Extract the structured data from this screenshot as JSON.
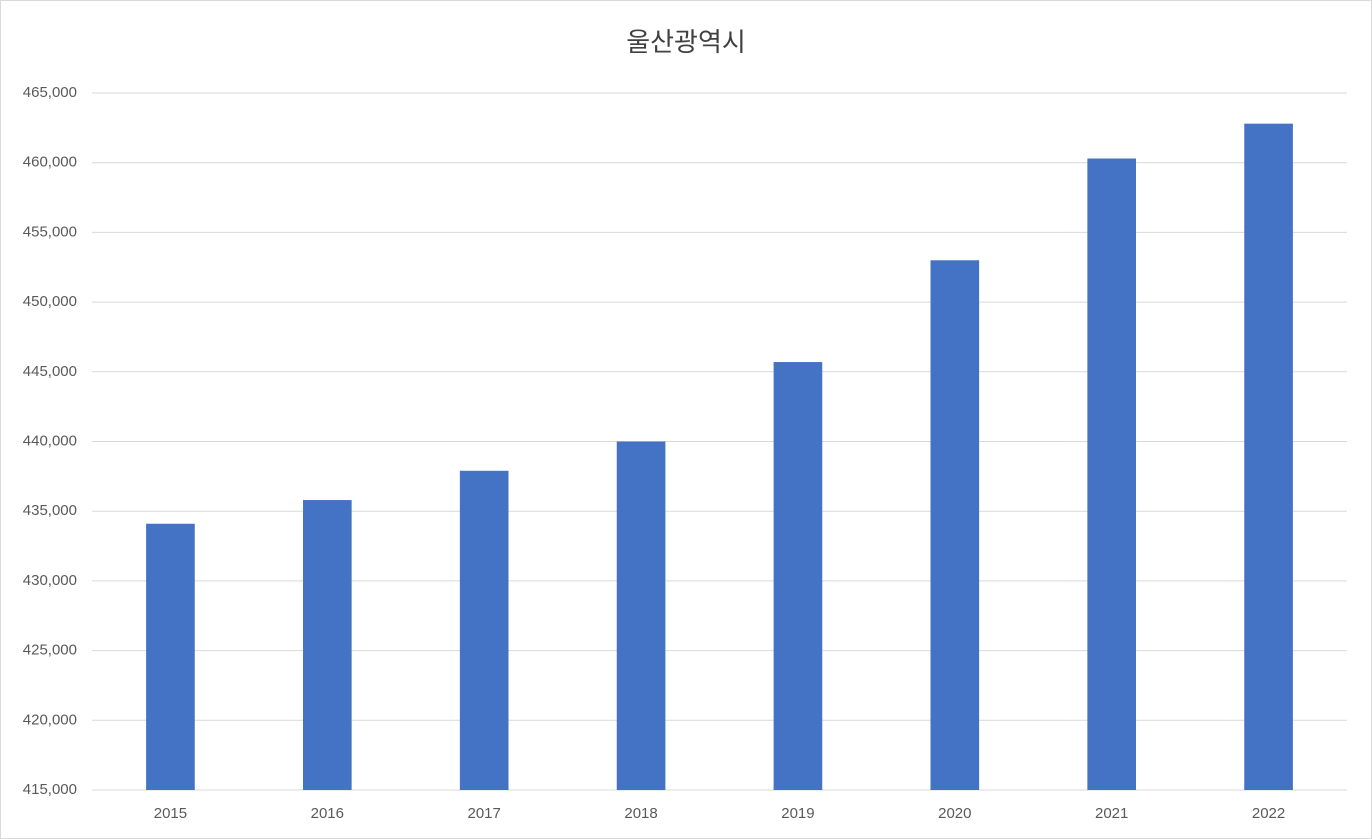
{
  "chart_data": {
    "type": "bar",
    "title": "울산광역시",
    "categories": [
      "2015",
      "2016",
      "2017",
      "2018",
      "2019",
      "2020",
      "2021",
      "2022"
    ],
    "values": [
      434100,
      435800,
      437900,
      440000,
      445700,
      453000,
      460300,
      462800
    ],
    "color": "#4472c4",
    "ylim": [
      415000,
      465000
    ],
    "yticks": [
      {
        "value": 415000,
        "label": "415,000"
      },
      {
        "value": 420000,
        "label": "420,000"
      },
      {
        "value": 425000,
        "label": "425,000"
      },
      {
        "value": 430000,
        "label": "430,000"
      },
      {
        "value": 435000,
        "label": "435,000"
      },
      {
        "value": 440000,
        "label": "440,000"
      },
      {
        "value": 445000,
        "label": "445,000"
      },
      {
        "value": 450000,
        "label": "450,000"
      },
      {
        "value": 455000,
        "label": "455,000"
      },
      {
        "value": 460000,
        "label": "460,000"
      },
      {
        "value": 465000,
        "label": "465,000"
      }
    ],
    "grid": true
  }
}
